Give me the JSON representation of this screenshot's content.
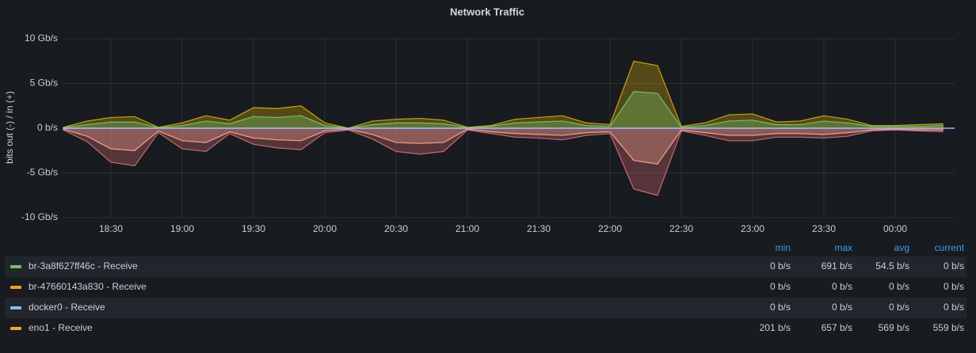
{
  "chart_data": {
    "type": "area",
    "title": "Network Traffic",
    "y_label": "bits out (-) / in (+)",
    "categories": [
      null,
      null,
      "18:30",
      null,
      null,
      "19:00",
      null,
      null,
      "19:30",
      null,
      null,
      "20:00",
      null,
      null,
      "20:30",
      null,
      null,
      "21:00",
      null,
      null,
      "21:30",
      null,
      null,
      "22:00",
      null,
      null,
      "22:30",
      null,
      null,
      "23:00",
      null,
      null,
      "23:30",
      null,
      null,
      "00:00",
      null,
      null
    ],
    "ylim": [
      -10,
      10
    ],
    "yticks": [
      {
        "value": -10,
        "label": "-10 Gb/s"
      },
      {
        "value": -5,
        "label": "-5 Gb/s"
      },
      {
        "value": 0,
        "label": "0 b/s"
      },
      {
        "value": 5,
        "label": "5 Gb/s"
      },
      {
        "value": 10,
        "label": "10 Gb/s"
      }
    ],
    "grid": true,
    "series": [
      {
        "color": "#c9a30a",
        "values": [
          0.1,
          0.8,
          1.2,
          1.3,
          0.1,
          0.6,
          1.4,
          0.9,
          2.3,
          2.2,
          2.5,
          0.6,
          0,
          0.8,
          1.0,
          1.1,
          0.9,
          0.1,
          0.3,
          1.0,
          1.2,
          1.4,
          0.6,
          0.4,
          7.5,
          7.0,
          0.2,
          0.6,
          1.5,
          1.6,
          0.7,
          0.8,
          1.4,
          1.0,
          0.3,
          0.3,
          0.4,
          0.5
        ]
      },
      {
        "color": "#73bf69",
        "values": [
          0.05,
          0.4,
          0.7,
          0.7,
          0.05,
          0.3,
          0.8,
          0.5,
          1.3,
          1.2,
          1.4,
          0.3,
          0,
          0.4,
          0.6,
          0.6,
          0.5,
          0.05,
          0.2,
          0.6,
          0.7,
          0.8,
          0.3,
          0.2,
          4.1,
          3.9,
          0.1,
          0.3,
          0.8,
          0.9,
          0.4,
          0.4,
          0.8,
          0.6,
          0.2,
          0.2,
          0.2,
          0.3
        ]
      },
      {
        "color": "#c8686e",
        "values": [
          -0.2,
          -1.5,
          -3.8,
          -4.2,
          -0.5,
          -2.3,
          -2.6,
          -0.6,
          -1.8,
          -2.2,
          -2.4,
          -0.5,
          -0.2,
          -1.2,
          -2.6,
          -2.9,
          -2.6,
          -0.2,
          -0.6,
          -1.0,
          -1.1,
          -1.3,
          -0.8,
          -0.6,
          -6.8,
          -7.5,
          -0.3,
          -0.8,
          -1.4,
          -1.4,
          -1.0,
          -1.0,
          -1.1,
          -0.9,
          -0.3,
          -0.2,
          -0.3,
          -0.4
        ]
      },
      {
        "color": "#f2a08b",
        "values": [
          -0.1,
          -0.9,
          -2.3,
          -2.5,
          -0.3,
          -1.4,
          -1.6,
          -0.4,
          -1.1,
          -1.3,
          -1.4,
          -0.3,
          -0.1,
          -0.7,
          -1.6,
          -1.7,
          -1.6,
          -0.1,
          -0.4,
          -0.6,
          -0.7,
          -0.8,
          -0.5,
          -0.4,
          -3.6,
          -4.0,
          -0.2,
          -0.5,
          -0.8,
          -0.8,
          -0.6,
          -0.6,
          -0.7,
          -0.5,
          -0.2,
          -0.1,
          -0.2,
          -0.2
        ]
      }
    ],
    "legend": {
      "columns": [
        "min",
        "max",
        "avg",
        "current"
      ],
      "rows": [
        {
          "name": "br-3a8f627ff46c - Receive",
          "color": "#73bf69",
          "cells": [
            "0 b/s",
            "691 b/s",
            "54.5 b/s",
            "0 b/s"
          ]
        },
        {
          "name": "br-47660143a830 - Receive",
          "color": "#ff9830",
          "cells": [
            "0 b/s",
            "0 b/s",
            "0 b/s",
            "0 b/s"
          ]
        },
        {
          "name": "docker0 - Receive",
          "color": "#8ab8ff",
          "cells": [
            "0 b/s",
            "0 b/s",
            "0 b/s",
            "0 b/s"
          ]
        },
        {
          "name": "eno1 - Receive",
          "color": "#f2a72e",
          "cells": [
            "201 b/s",
            "657 b/s",
            "569 b/s",
            "559 b/s"
          ]
        }
      ]
    }
  }
}
